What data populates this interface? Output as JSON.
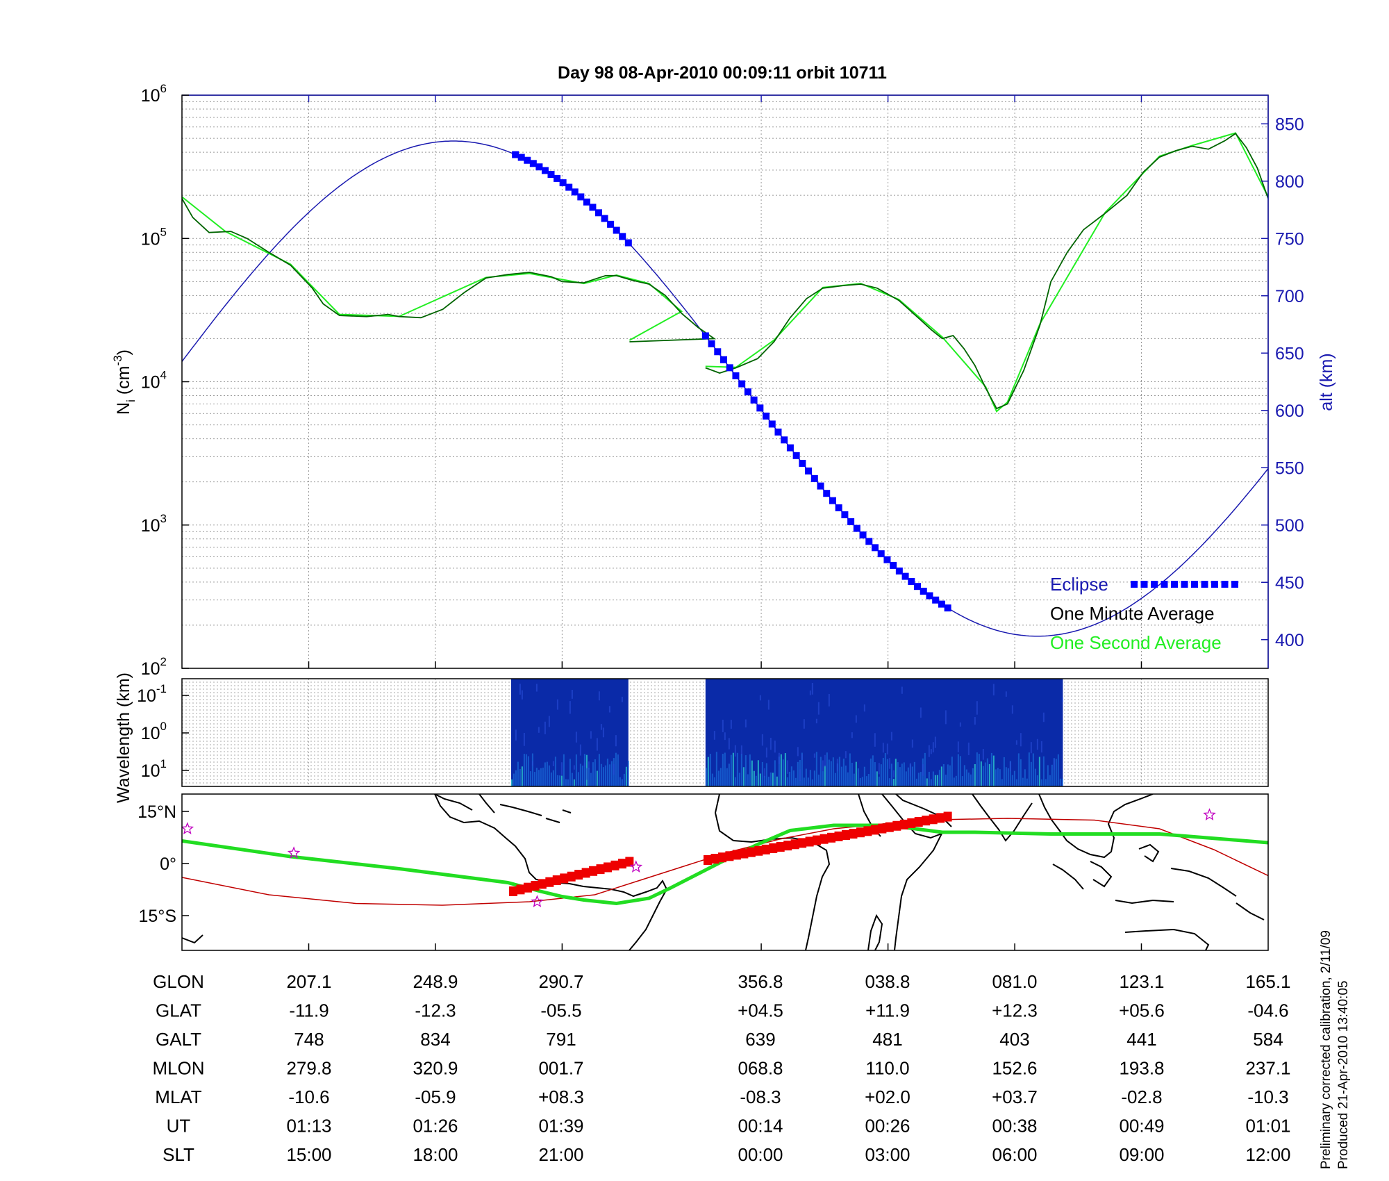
{
  "title": "Day 98  08-Apr-2010 00:09:11   orbit 10711",
  "side_note": [
    "Preliminary corrected calibration, 2/11/09",
    "Produced 21-Apr-2010 13:40:05"
  ],
  "colors": {
    "one_minute": "#006400",
    "one_second": "#22ee22",
    "altitude": "#1a1ab0",
    "eclipse": "#0000ff",
    "track_eclipse": "#ee0000",
    "ground_track": "#22dd22",
    "path": "#c00000",
    "star": "#c000c0"
  },
  "chart_data": [
    {
      "type": "line",
      "panel": "density",
      "ylabel_left": "N_i (cm^-3)",
      "ylabel_right": "alt (km)",
      "left_axis": {
        "scale": "log",
        "ylim": [
          100,
          1000000
        ],
        "ticks": [
          {
            "base": "10",
            "exp": "2"
          },
          {
            "base": "10",
            "exp": "3"
          },
          {
            "base": "10",
            "exp": "4"
          },
          {
            "base": "10",
            "exp": "5"
          },
          {
            "base": "10",
            "exp": "6"
          }
        ]
      },
      "right_axis": {
        "scale": "linear",
        "ylim": [
          375,
          875
        ],
        "ticks": [
          "400",
          "450",
          "500",
          "550",
          "600",
          "650",
          "700",
          "750",
          "800",
          "850"
        ]
      },
      "x_range": [
        0,
        1
      ],
      "legend": {
        "position": "bottom-right",
        "entries": [
          {
            "label": "Eclipse",
            "color": "#0000ff"
          },
          {
            "label": "One Minute Average",
            "color": "#000000"
          },
          {
            "label": "One Second Average",
            "color": "#22ee22"
          }
        ]
      },
      "series": [
        {
          "role": "one-minute",
          "segments": [
            [
              [
                0.0,
                190000
              ],
              [
                0.01,
                140000
              ],
              [
                0.025,
                110000
              ],
              [
                0.045,
                112000
              ],
              [
                0.06,
                100000
              ],
              [
                0.08,
                80000
              ],
              [
                0.1,
                65000
              ],
              [
                0.12,
                45000
              ],
              [
                0.13,
                35000
              ],
              [
                0.145,
                29000
              ],
              [
                0.17,
                28500
              ],
              [
                0.19,
                29500
              ],
              [
                0.2,
                28500
              ],
              [
                0.22,
                28000
              ],
              [
                0.24,
                32000
              ],
              [
                0.26,
                42000
              ],
              [
                0.28,
                53000
              ],
              [
                0.3,
                56000
              ],
              [
                0.32,
                58000
              ],
              [
                0.34,
                54000
              ],
              [
                0.35,
                50000
              ],
              [
                0.37,
                49000
              ],
              [
                0.38,
                52000
              ],
              [
                0.39,
                55000
              ],
              [
                0.4,
                55000
              ],
              [
                0.415,
                51000
              ],
              [
                0.43,
                48000
              ],
              [
                0.445,
                40000
              ],
              [
                0.46,
                30000
              ],
              [
                0.475,
                24000
              ],
              [
                0.49,
                20000
              ],
              [
                0.412,
                19000
              ]
            ],
            [
              [
                0.482,
                12500
              ],
              [
                0.495,
                11500
              ],
              [
                0.51,
                12500
              ],
              [
                0.53,
                14500
              ],
              [
                0.545,
                19000
              ],
              [
                0.56,
                28000
              ],
              [
                0.575,
                38000
              ],
              [
                0.59,
                45000
              ],
              [
                0.61,
                47000
              ],
              [
                0.625,
                48000
              ],
              [
                0.64,
                45000
              ],
              [
                0.66,
                37000
              ],
              [
                0.68,
                27000
              ],
              [
                0.69,
                23000
              ],
              [
                0.7,
                20000
              ],
              [
                0.71,
                21000
              ],
              [
                0.72,
                17000
              ],
              [
                0.73,
                13000
              ],
              [
                0.74,
                9000
              ],
              [
                0.75,
                6500
              ],
              [
                0.76,
                7000
              ],
              [
                0.775,
                12000
              ],
              [
                0.79,
                25000
              ],
              [
                0.8,
                50000
              ],
              [
                0.815,
                80000
              ],
              [
                0.83,
                115000
              ],
              [
                0.85,
                150000
              ],
              [
                0.87,
                200000
              ],
              [
                0.885,
                290000
              ],
              [
                0.9,
                370000
              ],
              [
                0.915,
                410000
              ],
              [
                0.93,
                440000
              ],
              [
                0.945,
                420000
              ],
              [
                0.96,
                480000
              ],
              [
                0.97,
                540000
              ],
              [
                0.98,
                430000
              ],
              [
                0.99,
                310000
              ],
              [
                1.0,
                190000
              ]
            ]
          ]
        },
        {
          "role": "one-second",
          "segments": [
            [
              [
                0.0,
                195000
              ],
              [
                0.04,
                112000
              ],
              [
                0.1,
                66000
              ],
              [
                0.145,
                29500
              ],
              [
                0.2,
                28600
              ],
              [
                0.28,
                53500
              ],
              [
                0.32,
                57000
              ],
              [
                0.37,
                48500
              ],
              [
                0.4,
                55500
              ],
              [
                0.43,
                48500
              ],
              [
                0.46,
                31000
              ],
              [
                0.412,
                19500
              ]
            ],
            [
              [
                0.482,
                12800
              ],
              [
                0.51,
                12600
              ],
              [
                0.545,
                19500
              ],
              [
                0.59,
                45500
              ],
              [
                0.625,
                48500
              ],
              [
                0.66,
                37500
              ],
              [
                0.7,
                20500
              ],
              [
                0.74,
                9200
              ],
              [
                0.75,
                6200
              ],
              [
                0.76,
                7200
              ],
              [
                0.79,
                25500
              ],
              [
                0.85,
                152000
              ],
              [
                0.9,
                375000
              ],
              [
                0.93,
                445000
              ],
              [
                0.97,
                545000
              ],
              [
                1.0,
                195000
              ]
            ]
          ]
        },
        {
          "role": "altitude",
          "model": {
            "min_alt": 403,
            "max_alt": 835,
            "x_at_min": 0.787,
            "x_at_max": 0.25,
            "period": 1.075
          }
        },
        {
          "role": "eclipse",
          "segments": [
            [
              0.307,
              0.411
            ],
            [
              0.482,
              0.705
            ]
          ]
        }
      ]
    },
    {
      "type": "heatmap",
      "panel": "spectrogram",
      "ylabel": "Wavelength (km)",
      "ytick": [
        {
          "base": "10",
          "exp": "-1"
        },
        {
          "base": "10",
          "exp": "0"
        },
        {
          "base": "10",
          "exp": "1"
        }
      ],
      "blocks": [
        [
          0.303,
          0.411
        ],
        [
          0.482,
          0.811
        ]
      ]
    },
    {
      "type": "map",
      "panel": "ground-track",
      "lat_range": [
        -25,
        20
      ],
      "yticks": [
        "15°N",
        "0°",
        "15°S"
      ],
      "ground_track": [
        [
          0.0,
          6.5
        ],
        [
          0.1,
          2
        ],
        [
          0.2,
          -1.5
        ],
        [
          0.3,
          -5.5
        ],
        [
          0.33,
          -8
        ],
        [
          0.35,
          -9.5
        ],
        [
          0.37,
          -10.5
        ],
        [
          0.4,
          -11.5
        ],
        [
          0.43,
          -10
        ],
        [
          0.45,
          -7
        ],
        [
          0.5,
          1
        ],
        [
          0.53,
          5.5
        ],
        [
          0.56,
          9.5
        ],
        [
          0.6,
          11
        ],
        [
          0.65,
          11
        ],
        [
          0.7,
          9
        ],
        [
          0.73,
          9
        ],
        [
          0.8,
          8.5
        ],
        [
          0.9,
          8.5
        ],
        [
          1.0,
          6
        ]
      ],
      "magnetic_equator": [
        [
          0.0,
          -4
        ],
        [
          0.08,
          -9
        ],
        [
          0.16,
          -11.5
        ],
        [
          0.24,
          -12
        ],
        [
          0.32,
          -11
        ],
        [
          0.38,
          -9
        ],
        [
          0.42,
          -5
        ],
        [
          0.46,
          -1
        ],
        [
          0.5,
          3
        ],
        [
          0.55,
          7
        ],
        [
          0.6,
          10
        ],
        [
          0.68,
          12.5
        ],
        [
          0.76,
          13
        ],
        [
          0.84,
          12.5
        ],
        [
          0.9,
          10
        ],
        [
          0.95,
          4
        ],
        [
          1.0,
          -3.5
        ]
      ],
      "eclipse_track": [
        [
          [
            0.305,
            -8
          ],
          [
            0.412,
            0.5
          ]
        ],
        [
          [
            0.484,
            1
          ],
          [
            0.705,
            13.5
          ]
        ]
      ],
      "stars": [
        [
          0.005,
          10
        ],
        [
          0.103,
          3
        ],
        [
          0.327,
          -11
        ],
        [
          0.418,
          -1
        ],
        [
          0.946,
          14
        ]
      ]
    },
    {
      "type": "table",
      "panel": "orbit-parameters",
      "row_labels": [
        "GLON",
        "GLAT",
        "GALT",
        "MLON",
        "MLAT",
        "UT",
        "SLT"
      ],
      "columns": [
        [
          "207.1",
          "-11.9",
          "748",
          "279.8",
          "-10.6",
          "01:13",
          "15:00"
        ],
        [
          "248.9",
          "-12.3",
          "834",
          "320.9",
          "-05.9",
          "01:26",
          "18:00"
        ],
        [
          "290.7",
          "-05.5",
          "791",
          "001.7",
          "+08.3",
          "01:39",
          "21:00"
        ],
        [
          "356.8",
          "+04.5",
          "639",
          "068.8",
          "-08.3",
          "00:14",
          "00:00"
        ],
        [
          "038.8",
          "+11.9",
          "481",
          "110.0",
          "+02.0",
          "00:26",
          "03:00"
        ],
        [
          "081.0",
          "+12.3",
          "403",
          "152.6",
          "+03.7",
          "00:38",
          "06:00"
        ],
        [
          "123.1",
          "+05.6",
          "441",
          "193.8",
          "-02.8",
          "00:49",
          "09:00"
        ],
        [
          "165.1",
          "-04.6",
          "584",
          "237.1",
          "-10.3",
          "01:01",
          "12:00"
        ]
      ]
    }
  ]
}
